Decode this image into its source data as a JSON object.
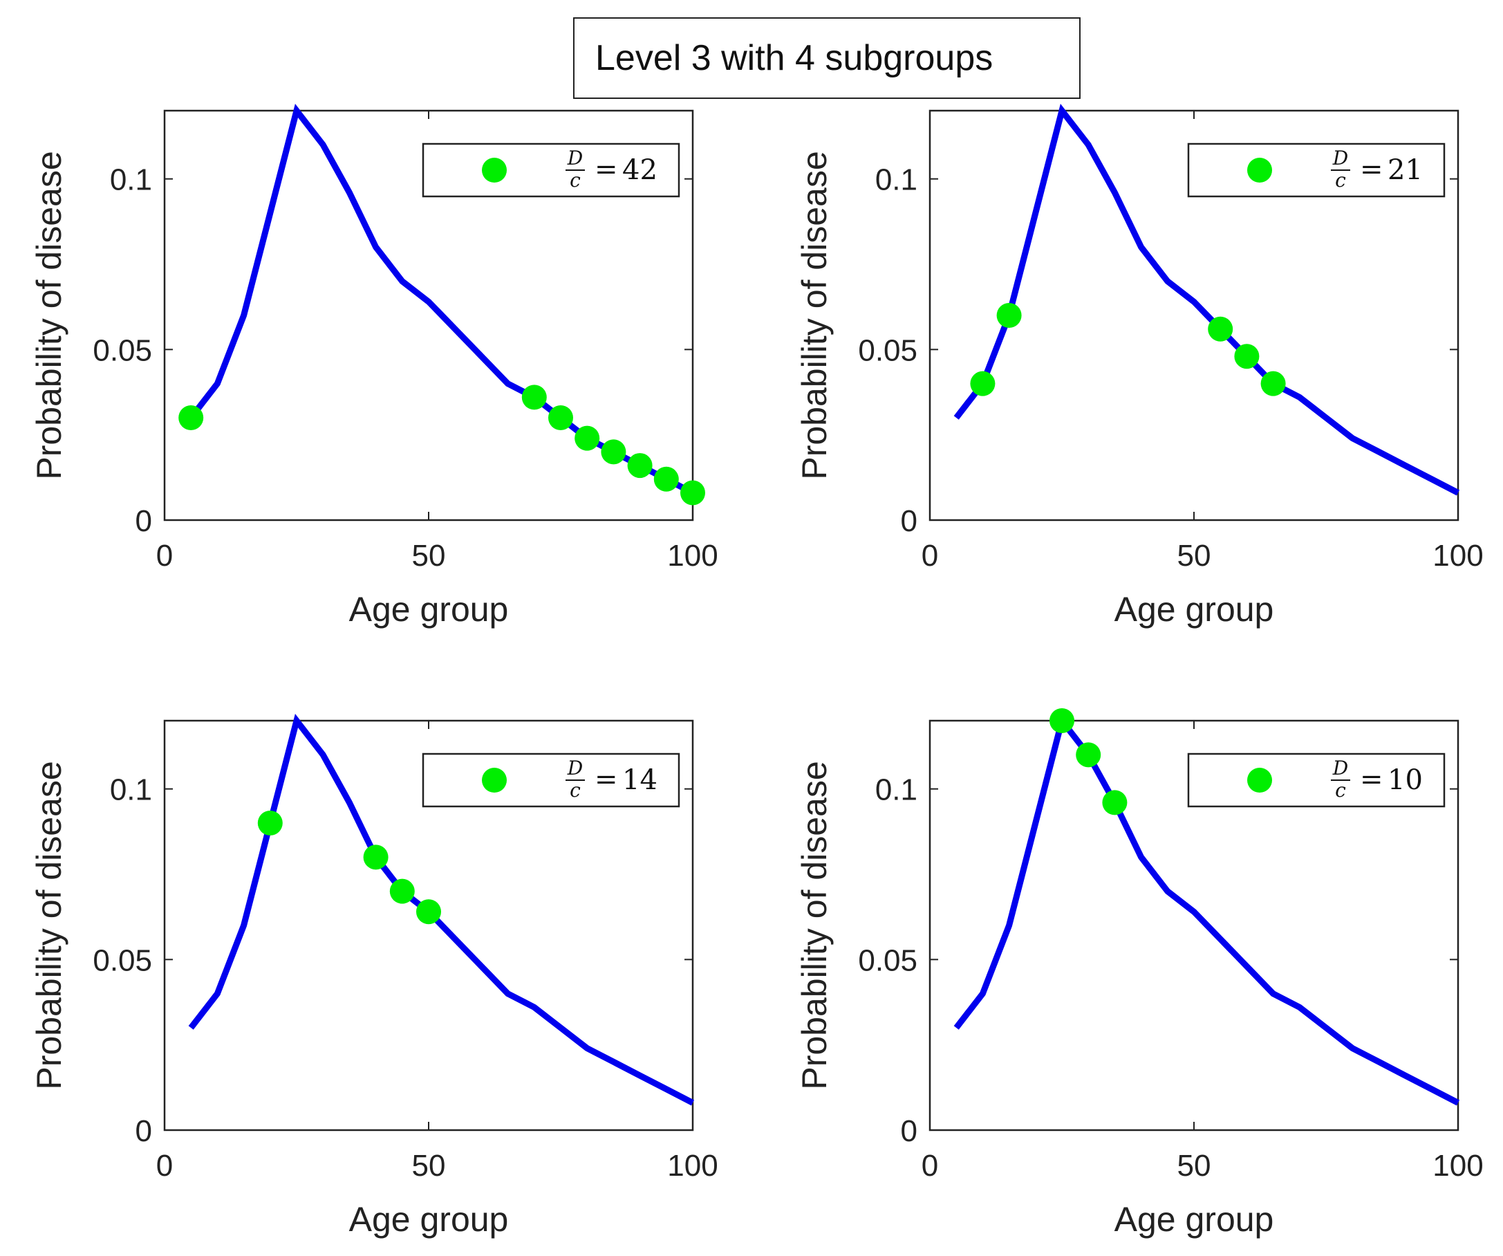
{
  "figure_title": "Level 3 with 4 subgroups",
  "colors": {
    "curve": "#0000ee",
    "points": "#00ee00",
    "axes": "#222222"
  },
  "chart_data": [
    {
      "type": "line",
      "xlabel": "Age group",
      "ylabel": "Probability of disease",
      "xlim": [
        0,
        100
      ],
      "ylim": [
        0,
        0.12
      ],
      "xticks": [
        "0",
        "50",
        "100"
      ],
      "yticks": [
        "0",
        "0.05",
        "0.1"
      ],
      "grid": false,
      "legend": {
        "position": "top-right",
        "frac_num": "D",
        "frac_den": "c",
        "value": "42"
      },
      "curve": {
        "x": [
          5,
          10,
          15,
          20,
          25,
          30,
          35,
          40,
          45,
          50,
          55,
          60,
          65,
          70,
          75,
          80,
          85,
          90,
          95,
          100
        ],
        "y": [
          0.03,
          0.04,
          0.06,
          0.09,
          0.12,
          0.11,
          0.096,
          0.08,
          0.07,
          0.064,
          0.056,
          0.048,
          0.04,
          0.036,
          0.03,
          0.024,
          0.02,
          0.016,
          0.012,
          0.008
        ]
      },
      "points": {
        "x": [
          5,
          70,
          75,
          80,
          85,
          90,
          95,
          100
        ],
        "y": [
          0.03,
          0.036,
          0.03,
          0.024,
          0.02,
          0.016,
          0.012,
          0.008
        ]
      }
    },
    {
      "type": "line",
      "xlabel": "Age group",
      "ylabel": "Probability of disease",
      "xlim": [
        0,
        100
      ],
      "ylim": [
        0,
        0.12
      ],
      "xticks": [
        "0",
        "50",
        "100"
      ],
      "yticks": [
        "0",
        "0.05",
        "0.1"
      ],
      "grid": false,
      "legend": {
        "position": "top-right",
        "frac_num": "D",
        "frac_den": "c",
        "value": "21"
      },
      "curve": {
        "x": [
          5,
          10,
          15,
          20,
          25,
          30,
          35,
          40,
          45,
          50,
          55,
          60,
          65,
          70,
          75,
          80,
          85,
          90,
          95,
          100
        ],
        "y": [
          0.03,
          0.04,
          0.06,
          0.09,
          0.12,
          0.11,
          0.096,
          0.08,
          0.07,
          0.064,
          0.056,
          0.048,
          0.04,
          0.036,
          0.03,
          0.024,
          0.02,
          0.016,
          0.012,
          0.008
        ]
      },
      "points": {
        "x": [
          10,
          15,
          55,
          60,
          65
        ],
        "y": [
          0.04,
          0.06,
          0.056,
          0.048,
          0.04
        ]
      }
    },
    {
      "type": "line",
      "xlabel": "Age group",
      "ylabel": "Probability of disease",
      "xlim": [
        0,
        100
      ],
      "ylim": [
        0,
        0.12
      ],
      "xticks": [
        "0",
        "50",
        "100"
      ],
      "yticks": [
        "0",
        "0.05",
        "0.1"
      ],
      "grid": false,
      "legend": {
        "position": "top-right",
        "frac_num": "D",
        "frac_den": "c",
        "value": "14"
      },
      "curve": {
        "x": [
          5,
          10,
          15,
          20,
          25,
          30,
          35,
          40,
          45,
          50,
          55,
          60,
          65,
          70,
          75,
          80,
          85,
          90,
          95,
          100
        ],
        "y": [
          0.03,
          0.04,
          0.06,
          0.09,
          0.12,
          0.11,
          0.096,
          0.08,
          0.07,
          0.064,
          0.056,
          0.048,
          0.04,
          0.036,
          0.03,
          0.024,
          0.02,
          0.016,
          0.012,
          0.008
        ]
      },
      "points": {
        "x": [
          20,
          40,
          45,
          50
        ],
        "y": [
          0.09,
          0.08,
          0.07,
          0.064
        ]
      }
    },
    {
      "type": "line",
      "xlabel": "Age group",
      "ylabel": "Probability of disease",
      "xlim": [
        0,
        100
      ],
      "ylim": [
        0,
        0.12
      ],
      "xticks": [
        "0",
        "50",
        "100"
      ],
      "yticks": [
        "0",
        "0.05",
        "0.1"
      ],
      "grid": false,
      "legend": {
        "position": "top-right",
        "frac_num": "D",
        "frac_den": "c",
        "value": "10"
      },
      "curve": {
        "x": [
          5,
          10,
          15,
          20,
          25,
          30,
          35,
          40,
          45,
          50,
          55,
          60,
          65,
          70,
          75,
          80,
          85,
          90,
          95,
          100
        ],
        "y": [
          0.03,
          0.04,
          0.06,
          0.09,
          0.12,
          0.11,
          0.096,
          0.08,
          0.07,
          0.064,
          0.056,
          0.048,
          0.04,
          0.036,
          0.03,
          0.024,
          0.02,
          0.016,
          0.012,
          0.008
        ]
      },
      "points": {
        "x": [
          25,
          30,
          35
        ],
        "y": [
          0.12,
          0.11,
          0.096
        ]
      }
    }
  ]
}
